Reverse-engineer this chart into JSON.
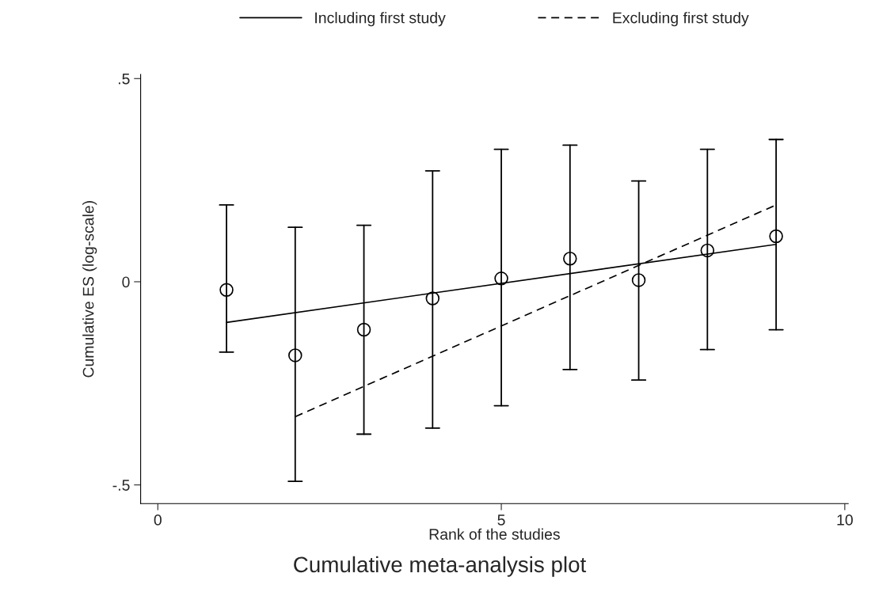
{
  "chart_data": {
    "type": "scatter",
    "title": "Cumulative meta-analysis plot",
    "xlabel": "Rank of the studies",
    "ylabel": "Cumulative ES (log-scale)",
    "xlim": [
      -0.25,
      10.05
    ],
    "xticks": [
      0,
      5,
      10
    ],
    "ylim": [
      -0.546,
      0.51
    ],
    "yticks": [
      {
        "value": 0.5,
        "label": ".5"
      },
      0,
      {
        "value": -0.5,
        "label": "-.5"
      }
    ],
    "grid": false,
    "legend": "top",
    "series": [
      {
        "marker": "circle",
        "color": "#000000",
        "x": [
          1,
          2,
          3,
          4,
          5,
          6,
          7,
          8,
          9
        ],
        "values": [
          -0.02,
          -0.181,
          -0.118,
          -0.041,
          0.008,
          0.057,
          0.004,
          0.077,
          0.112
        ],
        "errors": [
          [
            -0.173,
            0.189
          ],
          [
            -0.491,
            0.134
          ],
          [
            -0.375,
            0.139
          ],
          [
            -0.36,
            0.273
          ],
          [
            -0.305,
            0.326
          ],
          [
            -0.216,
            0.336
          ],
          [
            -0.242,
            0.248
          ],
          [
            -0.167,
            0.326
          ],
          [
            -0.118,
            0.35
          ]
        ]
      },
      {
        "type": "line",
        "name": "Including first study",
        "color": "#000000",
        "line_style": "solid",
        "x": [
          1,
          9
        ],
        "values": [
          -0.1,
          0.092
        ]
      },
      {
        "type": "line",
        "name": "Excluding first study",
        "color": "#000000",
        "line_style": "dashed",
        "x": [
          2,
          9
        ],
        "values": [
          -0.332,
          0.189
        ]
      }
    ]
  }
}
